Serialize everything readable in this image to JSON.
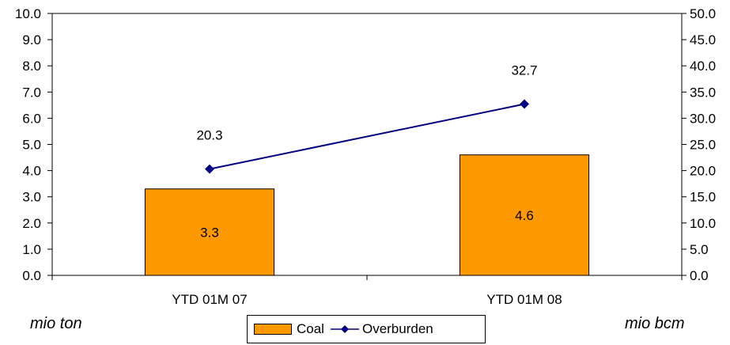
{
  "chart_data": {
    "type": "bar",
    "categories": [
      "YTD 01M 07",
      "YTD 01M 08"
    ],
    "series": [
      {
        "name": "Coal",
        "type": "bar",
        "axis": "left",
        "values": [
          3.3,
          4.6
        ],
        "data_labels": [
          "3.3",
          "4.6"
        ],
        "color": "#ff9900"
      },
      {
        "name": "Overburden",
        "type": "line",
        "axis": "right",
        "values": [
          20.3,
          32.7
        ],
        "data_labels": [
          "20.3",
          "32.7"
        ],
        "color": "#000080",
        "marker": "diamond"
      }
    ],
    "y_left": {
      "min": 0,
      "max": 10,
      "step": 1,
      "ticks": [
        "0.0",
        "1.0",
        "2.0",
        "3.0",
        "4.0",
        "5.0",
        "6.0",
        "7.0",
        "8.0",
        "9.0",
        "10.0"
      ],
      "label": "mio ton"
    },
    "y_right": {
      "min": 0,
      "max": 50,
      "step": 5,
      "ticks": [
        "0.0",
        "5.0",
        "10.0",
        "15.0",
        "20.0",
        "25.0",
        "30.0",
        "35.0",
        "40.0",
        "45.0",
        "50.0"
      ],
      "label": "mio bcm"
    },
    "grid": false,
    "legend_position": "bottom"
  }
}
